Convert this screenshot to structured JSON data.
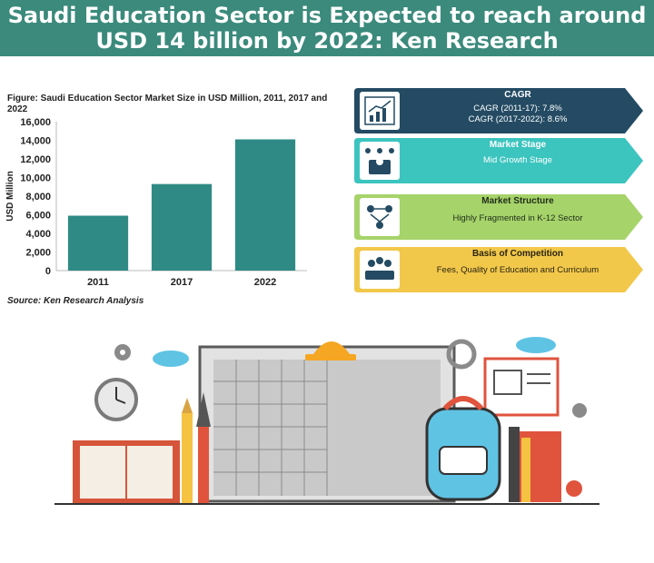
{
  "banner": {
    "line1": "Saudi Education Sector is Expected to reach around",
    "line2": "USD 14 billion by 2022: Ken Research"
  },
  "figure_title": "Figure: Saudi Education Sector Market Size in USD Million, 2011, 2017 and 2022",
  "source": "Source: Ken Research Analysis",
  "cards": [
    {
      "title": "CAGR",
      "lines": [
        "CAGR (2011-17): 7.8%",
        "CAGR (2017-2022): 8.6%"
      ],
      "color": "#244b63",
      "text_color": "#ffffff",
      "icon": "growth-chart-icon"
    },
    {
      "title": "Market Stage",
      "lines": [
        "Mid Growth Stage"
      ],
      "color": "#3cc4bf",
      "text_color": "#ffffff",
      "icon": "presenter-icon"
    },
    {
      "title": "Market Structure",
      "lines": [
        "Highly Fragmented in K-12 Sector"
      ],
      "color": "#a6d36a",
      "text_color": "#1f2d1a",
      "icon": "network-people-icon"
    },
    {
      "title": "Basis of Competition",
      "lines": [
        "Fees, Quality of Education and Curriculum"
      ],
      "color": "#f2c84b",
      "text_color": "#2a2410",
      "icon": "group-meeting-icon"
    }
  ],
  "chart_data": {
    "type": "bar",
    "categories": [
      "2011",
      "2017",
      "2022"
    ],
    "values": [
      5900,
      9300,
      14100
    ],
    "ylabel": "USD Million",
    "xlabel": "",
    "ylim": [
      0,
      16000
    ],
    "yticks": [
      0,
      2000,
      4000,
      6000,
      8000,
      10000,
      12000,
      14000,
      16000
    ],
    "ytick_labels": [
      "0",
      "2,000",
      "4,000",
      "6,000",
      "8,000",
      "10,000",
      "12,000",
      "14,000",
      "16,000"
    ],
    "grid": false,
    "bar_color": "#2f8a85"
  }
}
